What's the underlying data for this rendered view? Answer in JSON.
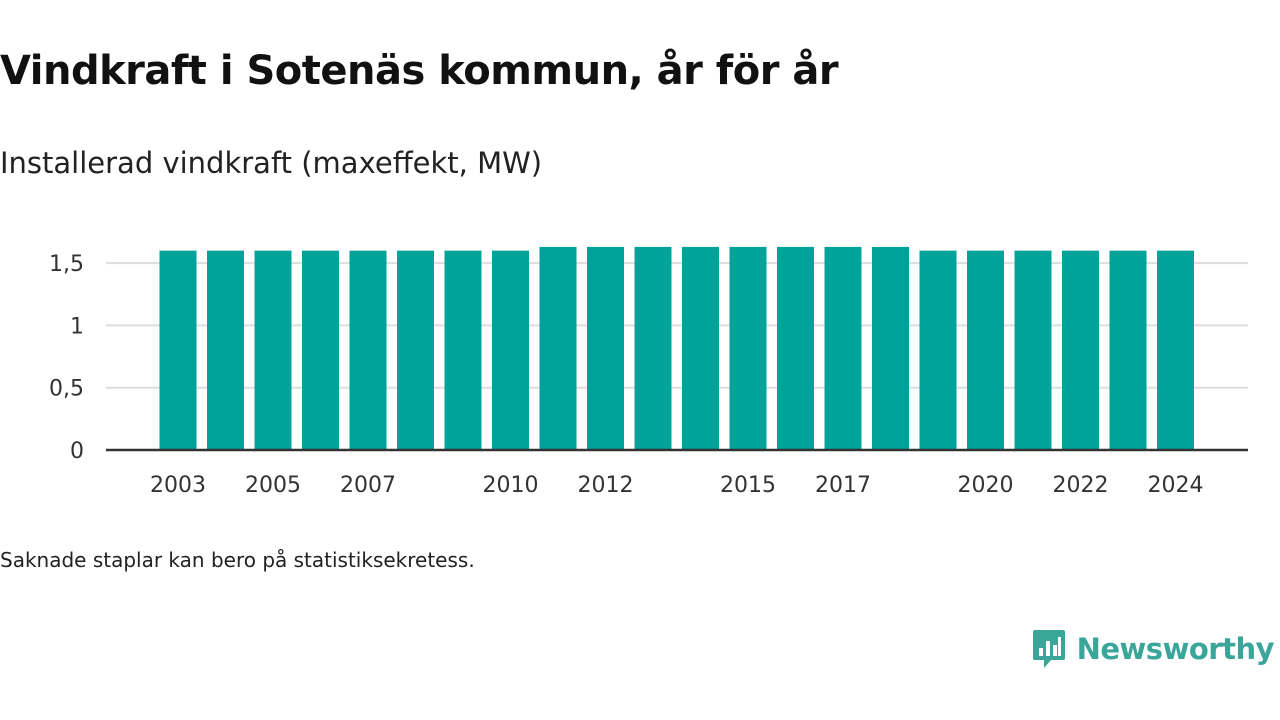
{
  "title": "Vindkraft i Sotenäs kommun, år för år",
  "subtitle": "Installerad vindkraft (maxeffekt, MW)",
  "note": "Saknade staplar kan bero på statistiksekretess.",
  "brand": {
    "name": "Newsworthy",
    "icon": "newsworthy-chart-bubble-icon",
    "color": "#3aa69a"
  },
  "chart_data": {
    "type": "bar",
    "categories": [
      "2003",
      "2004",
      "2005",
      "2006",
      "2007",
      "2008",
      "2009",
      "2010",
      "2011",
      "2012",
      "2013",
      "2014",
      "2015",
      "2016",
      "2017",
      "2018",
      "2019",
      "2020",
      "2021",
      "2022",
      "2023",
      "2024"
    ],
    "values": [
      1.6,
      1.6,
      1.6,
      1.6,
      1.6,
      1.6,
      1.6,
      1.6,
      1.63,
      1.63,
      1.63,
      1.63,
      1.63,
      1.63,
      1.63,
      1.63,
      1.6,
      1.6,
      1.6,
      1.6,
      1.6,
      1.6
    ],
    "x_tick_labels": [
      "2003",
      "2005",
      "2007",
      "2010",
      "2012",
      "2015",
      "2017",
      "2020",
      "2022",
      "2024"
    ],
    "y_ticks": [
      0,
      0.5,
      1,
      1.5
    ],
    "y_tick_labels": [
      "0",
      "0,5",
      "1",
      "1,5"
    ],
    "ylim": [
      0,
      1.75
    ],
    "grid": true,
    "bar_color": "#00a39a",
    "grid_color": "#dddddd",
    "axis_color": "#333333"
  }
}
